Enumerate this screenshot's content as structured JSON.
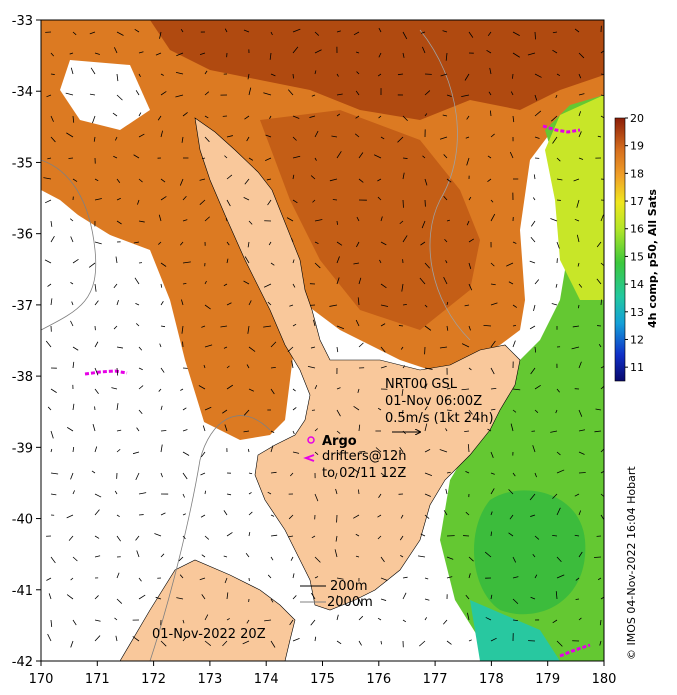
{
  "map": {
    "x_ticks": [
      "170",
      "171",
      "172",
      "173",
      "174",
      "175",
      "176",
      "177",
      "178",
      "179",
      "180"
    ],
    "y_ticks": [
      "-33",
      "-34",
      "-35",
      "-36",
      "-37",
      "-38",
      "-39",
      "-40",
      "-41",
      "-42"
    ],
    "lon_range": [
      170,
      180
    ],
    "lat_range": [
      -42,
      -33
    ]
  },
  "annotations": {
    "gsl_title": "NRT00 GSL",
    "gsl_time": "01-Nov 06:00Z",
    "gsl_scale": "0.5m/s (1kt 24h)",
    "argo_label": "Argo",
    "drifters_line1": "drifters@12h",
    "drifters_line2": "to 02/11 12Z",
    "isobath_200": "200m",
    "isobath_2000": "2000m",
    "map_time": "01-Nov-2022 20Z"
  },
  "colorbar": {
    "title": "4h comp, p50, All Sats",
    "ticks": [
      "11",
      "12",
      "13",
      "14",
      "15",
      "16",
      "17",
      "18",
      "19",
      "20"
    ],
    "min": 10.5,
    "max": 20
  },
  "credit": "© IMOS 04-Nov-2022 16:04 Hobart",
  "colors": {
    "land": "#f9c89b",
    "sst_warm": "#c8641a",
    "sst_hot": "#a83a0c",
    "sst_green": "#5cc832",
    "argo_marker": "#e600e6",
    "drifter": "#e600e6"
  }
}
